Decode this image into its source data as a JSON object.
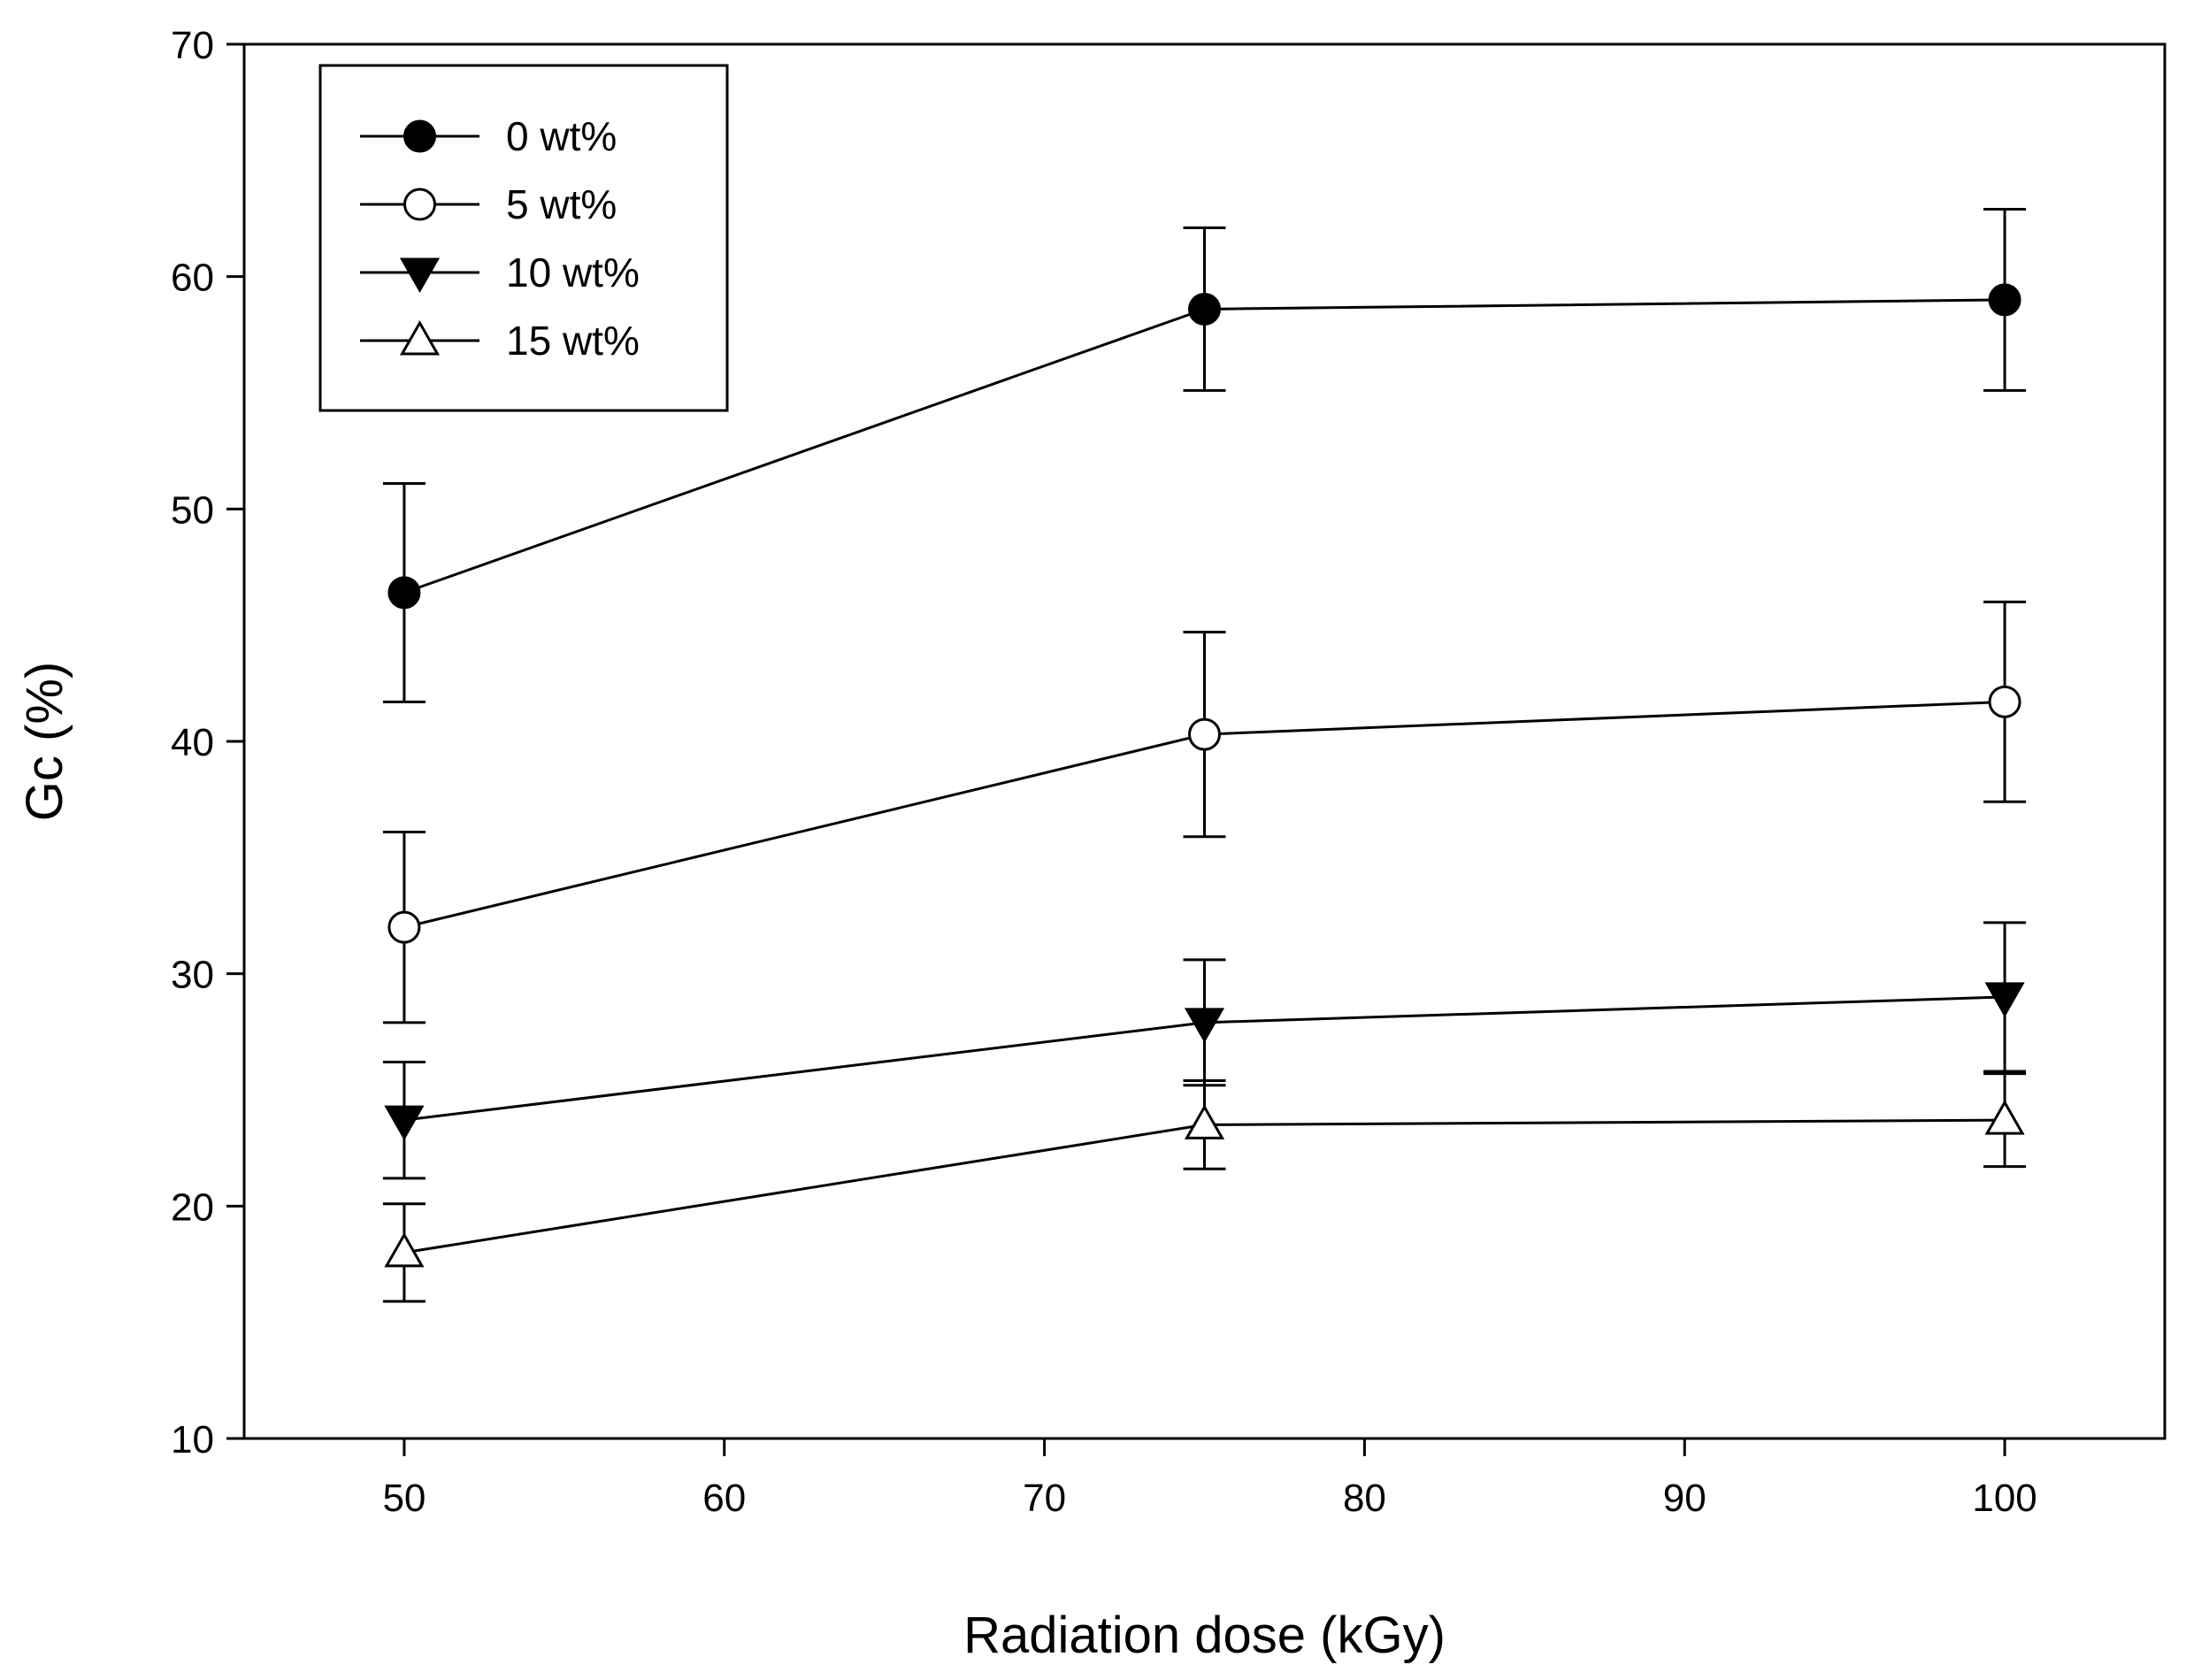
{
  "chart_data": {
    "type": "line",
    "title": "",
    "xlabel": "Radiation dose (kGy)",
    "ylabel": "Gc (%)",
    "xlim": [
      45,
      105
    ],
    "ylim": [
      10,
      70
    ],
    "xticks": [
      50,
      60,
      70,
      80,
      90,
      100
    ],
    "yticks": [
      10,
      20,
      30,
      40,
      50,
      60,
      70
    ],
    "legend_position": "top-left",
    "x": [
      50,
      75,
      100
    ],
    "series": [
      {
        "name": "0 wt%",
        "marker": "circle-filled",
        "values": [
          46.4,
          58.6,
          59.0
        ],
        "errors": [
          4.7,
          3.5,
          3.9
        ]
      },
      {
        "name": "5 wt%",
        "marker": "circle-open",
        "values": [
          32.0,
          40.3,
          41.7
        ],
        "errors": [
          4.1,
          4.4,
          4.3
        ]
      },
      {
        "name": "10 wt%",
        "marker": "triangle-down-filled",
        "values": [
          23.7,
          27.9,
          29.0
        ],
        "errors": [
          2.5,
          2.7,
          3.2
        ]
      },
      {
        "name": "15 wt%",
        "marker": "triangle-up-open",
        "values": [
          18.0,
          23.5,
          23.7
        ],
        "errors": [
          2.1,
          1.9,
          2.0
        ]
      }
    ]
  }
}
